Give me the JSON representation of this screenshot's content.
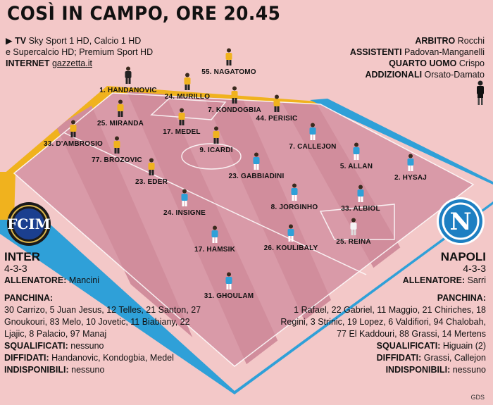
{
  "title": "COSÌ IN CAMPO, ORE 20.45",
  "tv": {
    "label": "TV",
    "line1": "Sky Sport 1 HD, Calcio 1 HD",
    "line2": "e Supercalcio HD; Premium Sport HD",
    "internet_label": "INTERNET",
    "internet_value": "gazzetta.it"
  },
  "officials": {
    "referee_label": "ARBITRO",
    "referee": "Rocchi",
    "assistants_label": "ASSISTENTI",
    "assistants": "Padovan-Manganelli",
    "fourth_label": "QUARTO UOMO",
    "fourth": "Crispo",
    "additional_label": "ADDIZIONALI",
    "additional": "Orsato-Damato"
  },
  "inter": {
    "name": "INTER",
    "formation": "4-3-3",
    "coach_label": "ALLENATORE:",
    "coach": "Mancini",
    "bench_label": "PANCHINA:",
    "bench": "30 Carrizo, 5 Juan Jesus, 12 Telles, 21 Santon, 27 Gnoukouri, 83 Melo, 10 Jovetic, 11 Biabiany, 22 Ljajic, 8 Palacio, 97 Manaj",
    "suspended_label": "SQUALIFICATI:",
    "suspended": "nessuno",
    "warned_label": "DIFFIDATI:",
    "warned": "Handanovic, Kondogbia, Medel",
    "unavailable_label": "INDISPONIBILI:",
    "unavailable": "nessuno",
    "color": "#f0b21e"
  },
  "napoli": {
    "name": "NAPOLI",
    "formation": "4-3-3",
    "coach_label": "ALLENATORE:",
    "coach": "Sarri",
    "bench_label": "PANCHINA:",
    "bench": "1 Rafael, 22 Gabriel, 11 Maggio, 21 Chiriches, 18 Regini, 3 Strinic, 19 Lopez, 6 Valdifiori, 94 Chalobah, 77 El Kaddouri, 88 Grassi, 14 Mertens",
    "suspended_label": "SQUALIFICATI:",
    "suspended": "Higuain (2)",
    "warned_label": "DIFFIDATI:",
    "warned": "Grassi, Callejon",
    "unavailable_label": "INDISPONIBILI:",
    "unavailable": "nessuno",
    "color": "#2fa0d8"
  },
  "players": {
    "inter": [
      "1. HANDANOVIC",
      "55. NAGATOMO",
      "24. MURILLO",
      "7. KONDOGBIA",
      "44. PERISIC",
      "25. MIRANDA",
      "17. MEDEL",
      "33. D'AMBROSIO",
      "9. ICARDI",
      "77. BROZOVIC",
      "23. EDER"
    ],
    "napoli": [
      "7. CALLEJON",
      "5. ALLAN",
      "2. HYSAJ",
      "23. GABBIADINI",
      "24. INSIGNE",
      "8. JORGINHO",
      "33. ALBIOL",
      "31. GHOULAM",
      "26. KOULIBALY",
      "25. REINA",
      "17. HAMSIK"
    ]
  },
  "credit": "GDS"
}
